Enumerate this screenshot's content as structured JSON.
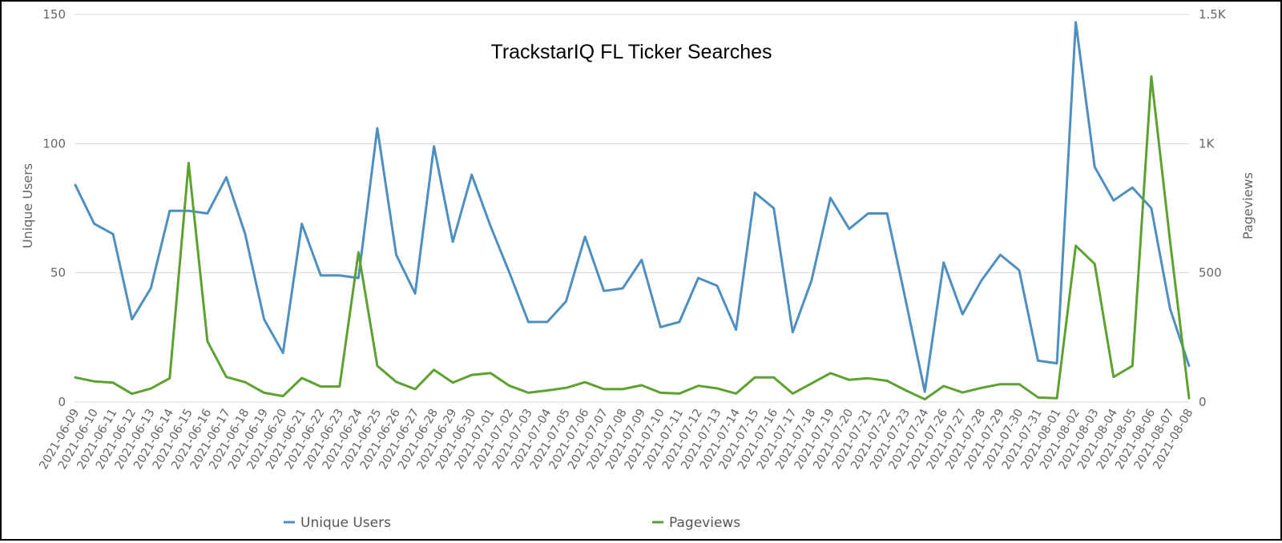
{
  "chart_data": {
    "type": "line",
    "title": "TrackstarIQ FL Ticker Searches",
    "x": [
      "2021-06-09",
      "2021-06-10",
      "2021-06-11",
      "2021-06-12",
      "2021-06-13",
      "2021-06-14",
      "2021-06-15",
      "2021-06-16",
      "2021-06-17",
      "2021-06-18",
      "2021-06-19",
      "2021-06-20",
      "2021-06-21",
      "2021-06-22",
      "2021-06-23",
      "2021-06-24",
      "2021-06-25",
      "2021-06-26",
      "2021-06-27",
      "2021-06-28",
      "2021-06-29",
      "2021-06-30",
      "2021-07-01",
      "2021-07-02",
      "2021-07-03",
      "2021-07-04",
      "2021-07-05",
      "2021-07-06",
      "2021-07-07",
      "2021-07-08",
      "2021-07-09",
      "2021-07-10",
      "2021-07-11",
      "2021-07-12",
      "2021-07-13",
      "2021-07-14",
      "2021-07-15",
      "2021-07-16",
      "2021-07-17",
      "2021-07-18",
      "2021-07-19",
      "2021-07-20",
      "2021-07-21",
      "2021-07-22",
      "2021-07-23",
      "2021-07-24",
      "2021-07-26",
      "2021-07-27",
      "2021-07-28",
      "2021-07-29",
      "2021-07-30",
      "2021-07-31",
      "2021-08-01",
      "2021-08-02",
      "2021-08-03",
      "2021-08-04",
      "2021-08-05",
      "2021-08-06",
      "2021-08-07",
      "2021-08-08"
    ],
    "series": [
      {
        "name": "Unique Users",
        "axis": "left",
        "color": "#4e8fc2",
        "values": [
          84,
          69,
          65,
          32,
          44,
          74,
          74,
          73,
          87,
          65,
          32,
          19,
          69,
          49,
          49,
          48,
          106,
          57,
          42,
          99,
          62,
          88,
          68,
          50,
          31,
          31,
          39,
          64,
          43,
          44,
          55,
          29,
          31,
          48,
          45,
          28,
          81,
          75,
          27,
          47,
          79,
          67,
          73,
          73,
          39,
          4,
          54,
          34,
          47,
          57,
          51,
          16,
          15,
          147,
          91,
          78,
          83,
          75,
          36,
          14
        ]
      },
      {
        "name": "Pageviews",
        "axis": "right",
        "color": "#5da131",
        "values": [
          95,
          80,
          75,
          32,
          52,
          92,
          925,
          235,
          97,
          77,
          36,
          23,
          93,
          60,
          60,
          580,
          140,
          78,
          50,
          125,
          75,
          105,
          112,
          63,
          36,
          45,
          55,
          77,
          50,
          50,
          65,
          36,
          33,
          63,
          53,
          33,
          95,
          95,
          33,
          72,
          112,
          86,
          92,
          82,
          45,
          11,
          62,
          37,
          55,
          69,
          69,
          18,
          15,
          605,
          535,
          97,
          140,
          1260,
          620,
          15
        ]
      }
    ],
    "y_left": {
      "label": "Unique Users",
      "range": [
        0,
        150
      ],
      "ticks": [
        0,
        50,
        100,
        150
      ],
      "tick_labels": [
        "0",
        "50",
        "100",
        "150"
      ]
    },
    "y_right": {
      "label": "Pageviews",
      "range": [
        0,
        1500
      ],
      "ticks": [
        0,
        500,
        1000,
        1500
      ],
      "tick_labels": [
        "0",
        "500",
        "1K",
        "1.5K"
      ]
    },
    "grid": "horizontal",
    "legend": "bottom-center"
  }
}
